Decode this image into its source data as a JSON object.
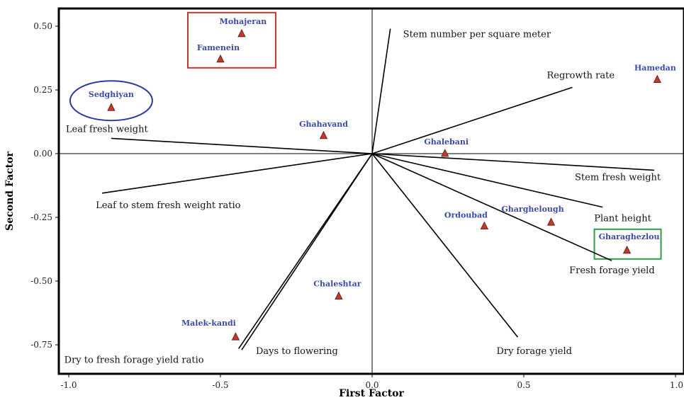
{
  "chart_data": {
    "type": "scatter",
    "subtype": "biplot",
    "xlabel": "First Factor",
    "ylabel": "Second Factor",
    "xlim": [
      -1.0,
      1.0
    ],
    "ylim": [
      -0.8,
      0.56
    ],
    "x_ticks": [
      "-1.0",
      "-0.5",
      "0.0",
      "0.5",
      "1.0"
    ],
    "x_tick_values": [
      -1.0,
      -0.5,
      0.0,
      0.5,
      1.0
    ],
    "y_ticks": [
      "0.50",
      "0.25",
      "0.00",
      "-0.25",
      "-0.50",
      "-0.75"
    ],
    "y_tick_values": [
      0.5,
      0.25,
      0.0,
      -0.25,
      -0.5,
      -0.75
    ],
    "reference_lines": {
      "x": 0.0,
      "y": 0.0
    },
    "grid": false,
    "point_marker_color": "#c0392b",
    "point_label_color": "#3b4ba3",
    "vectors": [
      {
        "name": "Stem number per square meter",
        "x": 0.06,
        "y": 0.49
      },
      {
        "name": "Regrowth rate",
        "x": 0.66,
        "y": 0.26
      },
      {
        "name": "Leaf fresh weight",
        "x": -0.86,
        "y": 0.06
      },
      {
        "name": "Leaf to stem fresh weight ratio",
        "x": -0.89,
        "y": -0.155
      },
      {
        "name": "Stem fresh weight",
        "x": 0.93,
        "y": -0.065
      },
      {
        "name": "Plant height",
        "x": 0.76,
        "y": -0.21
      },
      {
        "name": "Fresh forage yield",
        "x": 0.79,
        "y": -0.42
      },
      {
        "name": "Dry forage yield",
        "x": 0.48,
        "y": -0.72
      },
      {
        "name": "Days to flowering",
        "x": -0.43,
        "y": -0.77
      },
      {
        "name": "Dry to fresh forage yield ratio",
        "x": -0.44,
        "y": -0.765
      }
    ],
    "points": [
      {
        "name": "Mohajeran",
        "x": -0.43,
        "y": 0.47
      },
      {
        "name": "Famenein",
        "x": -0.5,
        "y": 0.37
      },
      {
        "name": "Sedghiyan",
        "x": -0.86,
        "y": 0.18
      },
      {
        "name": "Ghahavand",
        "x": -0.16,
        "y": 0.07
      },
      {
        "name": "Ghalebani",
        "x": 0.24,
        "y": 0.0
      },
      {
        "name": "Hamedan",
        "x": 0.94,
        "y": 0.29
      },
      {
        "name": "Gharghelough",
        "x": 0.59,
        "y": -0.27
      },
      {
        "name": "Ordoubad",
        "x": 0.37,
        "y": -0.285
      },
      {
        "name": "Gharaghezlou",
        "x": 0.84,
        "y": -0.38
      },
      {
        "name": "Chaleshtar",
        "x": -0.11,
        "y": -0.56
      },
      {
        "name": "Malek-kandi",
        "x": -0.45,
        "y": -0.72
      }
    ],
    "highlights": [
      {
        "shape": "rectangle",
        "color": "#c0392b",
        "encloses": [
          "Mohajeran",
          "Famenein"
        ]
      },
      {
        "shape": "ellipse",
        "color": "#2b3aa0",
        "encloses": [
          "Sedghiyan"
        ]
      },
      {
        "shape": "rectangle",
        "color": "#2e9d4a",
        "encloses": [
          "Gharaghezlou"
        ]
      }
    ]
  }
}
